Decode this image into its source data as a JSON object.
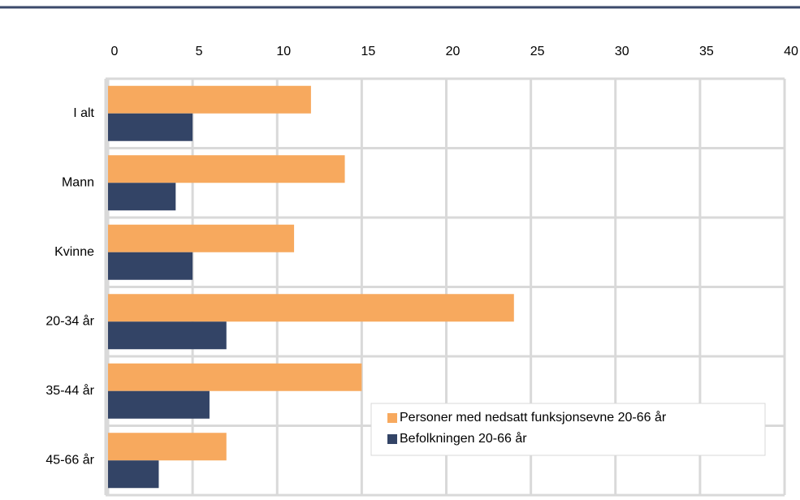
{
  "chart_data": {
    "type": "bar",
    "orientation": "horizontal",
    "categories": [
      "I alt",
      "Mann",
      "Kvinne",
      "20-34 år",
      "35-44 år",
      "45-66 år"
    ],
    "series": [
      {
        "name": "Personer med nedsatt funksjonsevne 20-66 år",
        "color": "#f7a95e",
        "values": [
          12,
          14,
          11,
          24,
          15,
          7
        ]
      },
      {
        "name": "Befolkningen 20-66 år",
        "color": "#334466",
        "values": [
          5,
          4,
          5,
          7,
          6,
          3
        ]
      }
    ],
    "xlim": [
      0,
      40
    ],
    "xticks": [
      0,
      5,
      10,
      15,
      20,
      25,
      30,
      35,
      40
    ],
    "grid": true,
    "legend": "lower right"
  }
}
